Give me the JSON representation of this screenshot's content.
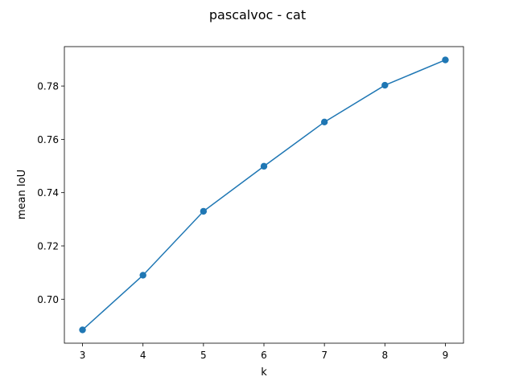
{
  "chart_data": {
    "type": "line",
    "title": "pascalvoc - cat",
    "xlabel": "k",
    "ylabel": "mean IoU",
    "x": [
      3,
      4,
      5,
      6,
      7,
      8,
      9
    ],
    "series": [
      {
        "values": [
          0.6885,
          0.709,
          0.733,
          0.7499,
          0.7665,
          0.7803,
          0.7898
        ]
      }
    ],
    "x_ticks": [
      "3",
      "4",
      "5",
      "6",
      "7",
      "8",
      "9"
    ],
    "y_ticks": [
      "0.70",
      "0.72",
      "0.74",
      "0.76",
      "0.78"
    ],
    "xlim": [
      2.7,
      9.3
    ],
    "ylim": [
      0.6835,
      0.7948
    ],
    "grid": false,
    "line_color": "#1f77b4"
  }
}
